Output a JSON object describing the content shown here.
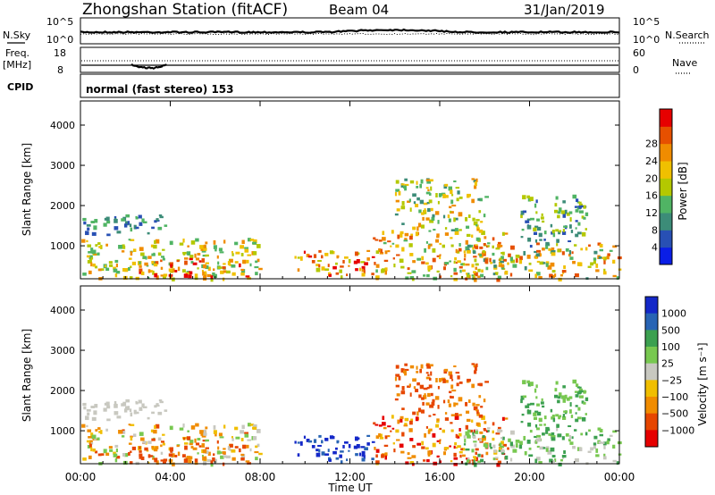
{
  "header": {
    "station": "Zhongshan Station (fitACF)",
    "beam": "Beam 04",
    "date": "31/Jan/2019"
  },
  "left_labels": {
    "nsky": "N.Sky",
    "freq_1": "Freq.",
    "freq_2": "[MHz]",
    "cpid": "CPID"
  },
  "right_labels": {
    "nsearch": "N.Search",
    "nave": "Nave"
  },
  "cpid_text": "normal (fast stereo) 153",
  "colors": {
    "power": [
      "#0a1ee6",
      "#2850b4",
      "#3c8c78",
      "#50b464",
      "#b4c800",
      "#f0c000",
      "#f08c00",
      "#e65000",
      "#e60000"
    ],
    "velocity": [
      "#e60000",
      "#e64600",
      "#f08c00",
      "#f0be00",
      "#c8c8c0",
      "#78c850",
      "#3ca050",
      "#2864b4",
      "#1428c8"
    ]
  },
  "chart_data": [
    {
      "type": "line",
      "name": "nsky-nsearch",
      "ylabel": "N.Sky",
      "y2label": "N.Search",
      "y_ticks": [
        "10^5",
        "10^0"
      ],
      "y2_ticks": [
        "10^5",
        "10^0"
      ],
      "xlim": [
        0,
        24
      ]
    },
    {
      "type": "line",
      "name": "freq-nave",
      "ylabel": "Freq. [MHz]",
      "y2label": "Nave",
      "y_ticks": [
        18,
        8
      ],
      "y2_ticks": [
        60,
        0
      ],
      "xlim": [
        0,
        24
      ]
    },
    {
      "type": "heatmap",
      "name": "power",
      "xlabel": "",
      "ylabel": "Slant Range [km]",
      "xlim": [
        0,
        24
      ],
      "ylim": [
        180,
        4600
      ],
      "y_ticks": [
        1000,
        2000,
        3000,
        4000
      ],
      "colorbar_label": "Power [dB]",
      "colorbar_ticks": [
        "4",
        "8",
        "12",
        "16",
        "20",
        "24",
        "28"
      ],
      "colorbar_range": [
        0,
        32
      ]
    },
    {
      "type": "heatmap",
      "name": "velocity",
      "xlabel": "Time UT",
      "ylabel": "Slant Range [km]",
      "xlim": [
        0,
        24
      ],
      "ylim": [
        180,
        4600
      ],
      "y_ticks": [
        1000,
        2000,
        3000,
        4000
      ],
      "x_ticks": [
        "00:00",
        "04:00",
        "08:00",
        "12:00",
        "16:00",
        "20:00",
        "00:00"
      ],
      "colorbar_label": "Velocity [m s⁻¹]",
      "colorbar_ticks": [
        "1000",
        "500",
        "100",
        "25",
        "−25",
        "−100",
        "−500",
        "−1000"
      ]
    }
  ]
}
